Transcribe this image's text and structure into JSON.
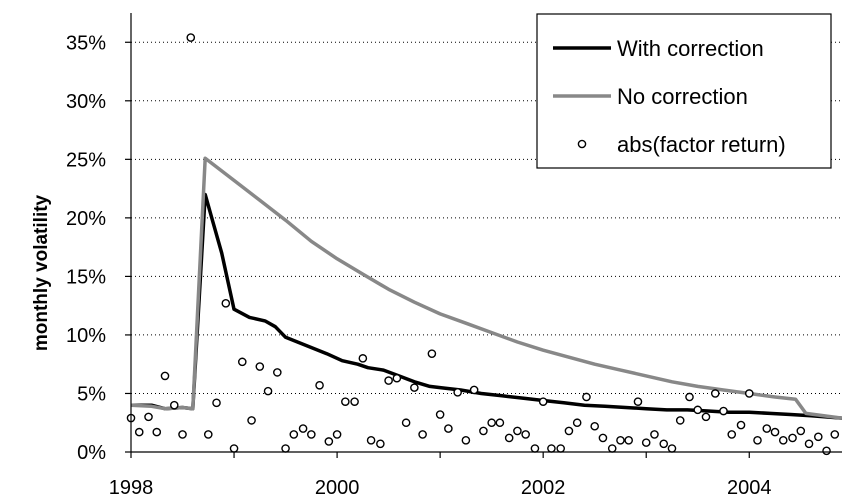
{
  "chart_data": {
    "type": "line",
    "title": "",
    "xlabel": "",
    "ylabel": "monthly volatility",
    "xlim": [
      1998,
      2004.9
    ],
    "ylim": [
      0,
      0.375
    ],
    "x_ticks": [
      1998,
      2000,
      2002,
      2004
    ],
    "x_tick_labels": [
      "1998",
      "2000",
      "2002",
      "2004"
    ],
    "y_ticks": [
      0,
      0.05,
      0.1,
      0.15,
      0.2,
      0.25,
      0.3,
      0.35
    ],
    "y_tick_labels": [
      "0%",
      "5%",
      "10%",
      "15%",
      "20%",
      "25%",
      "30%",
      "35%"
    ],
    "grid": "horizontal dotted",
    "legend_position": "top-right",
    "series": [
      {
        "name": "With correction",
        "style": "line",
        "color": "#000000",
        "points": [
          [
            1998.0,
            0.04
          ],
          [
            1998.2,
            0.04
          ],
          [
            1998.33,
            0.037
          ],
          [
            1998.5,
            0.038
          ],
          [
            1998.6,
            0.037
          ],
          [
            1998.72,
            0.22
          ],
          [
            1998.8,
            0.195
          ],
          [
            1998.88,
            0.17
          ],
          [
            1999.0,
            0.122
          ],
          [
            1999.15,
            0.115
          ],
          [
            1999.3,
            0.112
          ],
          [
            1999.4,
            0.107
          ],
          [
            1999.5,
            0.098
          ],
          [
            1999.7,
            0.091
          ],
          [
            1999.9,
            0.084
          ],
          [
            2000.05,
            0.078
          ],
          [
            2000.2,
            0.075
          ],
          [
            2000.3,
            0.072
          ],
          [
            2000.45,
            0.07
          ],
          [
            2000.6,
            0.065
          ],
          [
            2000.75,
            0.06
          ],
          [
            2000.9,
            0.056
          ],
          [
            2001.0,
            0.055
          ],
          [
            2001.2,
            0.053
          ],
          [
            2001.4,
            0.05
          ],
          [
            2001.6,
            0.048
          ],
          [
            2001.8,
            0.046
          ],
          [
            2002.0,
            0.044
          ],
          [
            2002.2,
            0.042
          ],
          [
            2002.4,
            0.04
          ],
          [
            2002.6,
            0.039
          ],
          [
            2002.8,
            0.038
          ],
          [
            2003.0,
            0.037
          ],
          [
            2003.2,
            0.036
          ],
          [
            2003.4,
            0.036
          ],
          [
            2003.6,
            0.035
          ],
          [
            2003.8,
            0.034
          ],
          [
            2004.0,
            0.034
          ],
          [
            2004.2,
            0.033
          ],
          [
            2004.4,
            0.032
          ],
          [
            2004.6,
            0.031
          ],
          [
            2004.9,
            0.029
          ]
        ]
      },
      {
        "name": "No correction",
        "style": "line",
        "color": "#888888",
        "points": [
          [
            1998.0,
            0.04
          ],
          [
            1998.2,
            0.039
          ],
          [
            1998.33,
            0.037
          ],
          [
            1998.5,
            0.038
          ],
          [
            1998.6,
            0.037
          ],
          [
            1998.72,
            0.251
          ],
          [
            1999.0,
            0.232
          ],
          [
            1999.25,
            0.215
          ],
          [
            1999.5,
            0.198
          ],
          [
            1999.75,
            0.18
          ],
          [
            2000.0,
            0.165
          ],
          [
            2000.25,
            0.152
          ],
          [
            2000.5,
            0.139
          ],
          [
            2000.75,
            0.128
          ],
          [
            2001.0,
            0.118
          ],
          [
            2001.25,
            0.11
          ],
          [
            2001.5,
            0.102
          ],
          [
            2001.75,
            0.094
          ],
          [
            2002.0,
            0.087
          ],
          [
            2002.25,
            0.081
          ],
          [
            2002.5,
            0.075
          ],
          [
            2002.75,
            0.07
          ],
          [
            2003.0,
            0.065
          ],
          [
            2003.25,
            0.06
          ],
          [
            2003.5,
            0.056
          ],
          [
            2003.75,
            0.053
          ],
          [
            2004.0,
            0.05
          ],
          [
            2004.25,
            0.047
          ],
          [
            2004.45,
            0.045
          ],
          [
            2004.55,
            0.033
          ],
          [
            2004.9,
            0.029
          ]
        ]
      },
      {
        "name": "abs(factor return)",
        "style": "markers",
        "color": "#000000",
        "points": [
          [
            1998.0,
            0.029
          ],
          [
            1998.08,
            0.017
          ],
          [
            1998.17,
            0.03
          ],
          [
            1998.25,
            0.017
          ],
          [
            1998.33,
            0.065
          ],
          [
            1998.42,
            0.04
          ],
          [
            1998.5,
            0.015
          ],
          [
            1998.58,
            0.354
          ],
          [
            1998.75,
            0.015
          ],
          [
            1998.83,
            0.042
          ],
          [
            1998.92,
            0.127
          ],
          [
            1999.0,
            0.003
          ],
          [
            1999.08,
            0.077
          ],
          [
            1999.17,
            0.027
          ],
          [
            1999.25,
            0.073
          ],
          [
            1999.33,
            0.052
          ],
          [
            1999.42,
            0.068
          ],
          [
            1999.5,
            0.003
          ],
          [
            1999.58,
            0.015
          ],
          [
            1999.67,
            0.02
          ],
          [
            1999.75,
            0.015
          ],
          [
            1999.83,
            0.057
          ],
          [
            1999.92,
            0.009
          ],
          [
            2000.0,
            0.015
          ],
          [
            2000.08,
            0.043
          ],
          [
            2000.17,
            0.043
          ],
          [
            2000.25,
            0.08
          ],
          [
            2000.33,
            0.01
          ],
          [
            2000.42,
            0.007
          ],
          [
            2000.5,
            0.061
          ],
          [
            2000.58,
            0.063
          ],
          [
            2000.67,
            0.025
          ],
          [
            2000.75,
            0.055
          ],
          [
            2000.83,
            0.015
          ],
          [
            2000.92,
            0.084
          ],
          [
            2001.0,
            0.032
          ],
          [
            2001.08,
            0.02
          ],
          [
            2001.17,
            0.051
          ],
          [
            2001.25,
            0.01
          ],
          [
            2001.33,
            0.053
          ],
          [
            2001.42,
            0.018
          ],
          [
            2001.5,
            0.025
          ],
          [
            2001.58,
            0.025
          ],
          [
            2001.67,
            0.012
          ],
          [
            2001.75,
            0.018
          ],
          [
            2001.83,
            0.015
          ],
          [
            2001.92,
            0.003
          ],
          [
            2002.0,
            0.043
          ],
          [
            2002.08,
            0.003
          ],
          [
            2002.17,
            0.003
          ],
          [
            2002.25,
            0.018
          ],
          [
            2002.33,
            0.025
          ],
          [
            2002.42,
            0.047
          ],
          [
            2002.5,
            0.022
          ],
          [
            2002.58,
            0.012
          ],
          [
            2002.67,
            0.003
          ],
          [
            2002.75,
            0.01
          ],
          [
            2002.83,
            0.01
          ],
          [
            2002.92,
            0.043
          ],
          [
            2003.0,
            0.008
          ],
          [
            2003.08,
            0.015
          ],
          [
            2003.17,
            0.007
          ],
          [
            2003.25,
            0.003
          ],
          [
            2003.33,
            0.027
          ],
          [
            2003.42,
            0.047
          ],
          [
            2003.5,
            0.036
          ],
          [
            2003.58,
            0.03
          ],
          [
            2003.67,
            0.05
          ],
          [
            2003.75,
            0.035
          ],
          [
            2003.83,
            0.015
          ],
          [
            2003.92,
            0.023
          ],
          [
            2004.0,
            0.05
          ],
          [
            2004.08,
            0.01
          ],
          [
            2004.17,
            0.02
          ],
          [
            2004.25,
            0.017
          ],
          [
            2004.33,
            0.01
          ],
          [
            2004.42,
            0.012
          ],
          [
            2004.5,
            0.018
          ],
          [
            2004.58,
            0.007
          ],
          [
            2004.67,
            0.013
          ],
          [
            2004.75,
            0.001
          ],
          [
            2004.83,
            0.015
          ]
        ]
      }
    ]
  }
}
